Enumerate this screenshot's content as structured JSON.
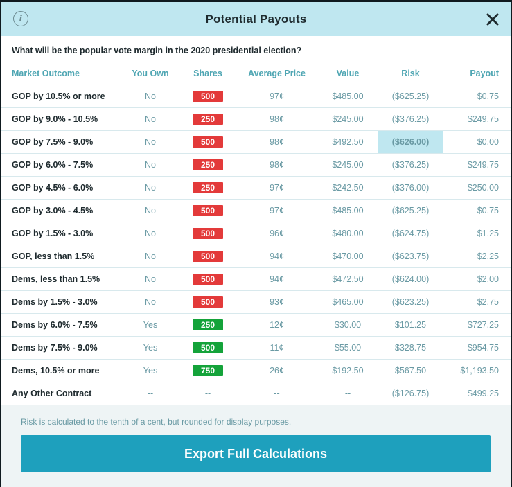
{
  "header": {
    "title": "Potential Payouts"
  },
  "question": "What will be the popular vote margin in the 2020 presidential election?",
  "columns": [
    "Market Outcome",
    "You Own",
    "Shares",
    "Average Price",
    "Value",
    "Risk",
    "Payout"
  ],
  "rows": [
    {
      "outcome": "GOP by 10.5% or more",
      "own": "No",
      "shares": "500",
      "shares_color": "#e33a3a",
      "price": "97¢",
      "value": "$485.00",
      "risk": "($625.25)",
      "payout": "$0.75"
    },
    {
      "outcome": "GOP by 9.0% - 10.5%",
      "own": "No",
      "shares": "250",
      "shares_color": "#e33a3a",
      "price": "98¢",
      "value": "$245.00",
      "risk": "($376.25)",
      "payout": "$249.75"
    },
    {
      "outcome": "GOP by 7.5% - 9.0%",
      "own": "No",
      "shares": "500",
      "shares_color": "#e33a3a",
      "price": "98¢",
      "value": "$492.50",
      "risk": "($626.00)",
      "payout": "$0.00",
      "highlight": true
    },
    {
      "outcome": "GOP by 6.0% - 7.5%",
      "own": "No",
      "shares": "250",
      "shares_color": "#e33a3a",
      "price": "98¢",
      "value": "$245.00",
      "risk": "($376.25)",
      "payout": "$249.75"
    },
    {
      "outcome": "GOP by 4.5% - 6.0%",
      "own": "No",
      "shares": "250",
      "shares_color": "#e33a3a",
      "price": "97¢",
      "value": "$242.50",
      "risk": "($376.00)",
      "payout": "$250.00"
    },
    {
      "outcome": "GOP by 3.0% - 4.5%",
      "own": "No",
      "shares": "500",
      "shares_color": "#e33a3a",
      "price": "97¢",
      "value": "$485.00",
      "risk": "($625.25)",
      "payout": "$0.75"
    },
    {
      "outcome": "GOP by 1.5% - 3.0%",
      "own": "No",
      "shares": "500",
      "shares_color": "#e33a3a",
      "price": "96¢",
      "value": "$480.00",
      "risk": "($624.75)",
      "payout": "$1.25"
    },
    {
      "outcome": "GOP, less than 1.5%",
      "own": "No",
      "shares": "500",
      "shares_color": "#e33a3a",
      "price": "94¢",
      "value": "$470.00",
      "risk": "($623.75)",
      "payout": "$2.25"
    },
    {
      "outcome": "Dems, less than 1.5%",
      "own": "No",
      "shares": "500",
      "shares_color": "#e33a3a",
      "price": "94¢",
      "value": "$472.50",
      "risk": "($624.00)",
      "payout": "$2.00"
    },
    {
      "outcome": "Dems by 1.5% - 3.0%",
      "own": "No",
      "shares": "500",
      "shares_color": "#e33a3a",
      "price": "93¢",
      "value": "$465.00",
      "risk": "($623.25)",
      "payout": "$2.75"
    },
    {
      "outcome": "Dems by 6.0% - 7.5%",
      "own": "Yes",
      "shares": "250",
      "shares_color": "#14a33a",
      "price": "12¢",
      "value": "$30.00",
      "risk": "$101.25",
      "payout": "$727.25"
    },
    {
      "outcome": "Dems by 7.5% - 9.0%",
      "own": "Yes",
      "shares": "500",
      "shares_color": "#14a33a",
      "price": "11¢",
      "value": "$55.00",
      "risk": "$328.75",
      "payout": "$954.75"
    },
    {
      "outcome": "Dems, 10.5% or more",
      "own": "Yes",
      "shares": "750",
      "shares_color": "#14a33a",
      "price": "26¢",
      "value": "$192.50",
      "risk": "$567.50",
      "payout": "$1,193.50"
    },
    {
      "outcome": "Any Other Contract",
      "own": "--",
      "shares": "--",
      "shares_color": "",
      "price": "--",
      "value": "--",
      "risk": "($126.75)",
      "payout": "$499.25"
    }
  ],
  "footer": {
    "note": "Risk is calculated to the tenth of a cent, but rounded for display purposes.",
    "export_label": "Export Full Calculations"
  },
  "colors": {
    "header_bg": "#bfe7f0",
    "accent": "#1ea0bd",
    "negative_shares": "#e33a3a",
    "positive_shares": "#14a33a",
    "highlight": "#bfe7f0"
  }
}
